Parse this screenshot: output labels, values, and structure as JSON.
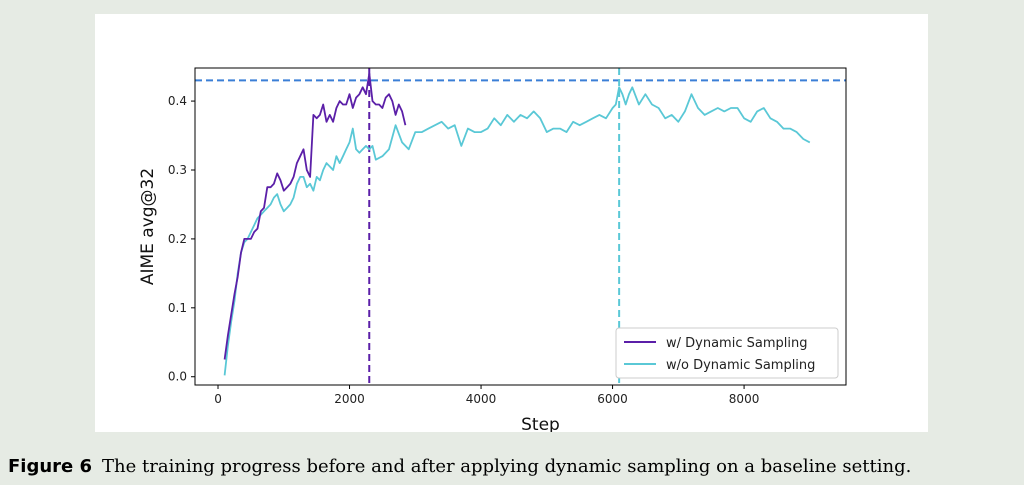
{
  "caption": {
    "label": "Figure 6",
    "text": "The training progress before and after applying dynamic sampling on a baseline setting."
  },
  "chart_data": {
    "type": "line",
    "title": "",
    "xlabel": "Step",
    "ylabel": "AIME avg@32",
    "xlim": [
      -350,
      9550
    ],
    "ylim": [
      -0.012,
      0.448
    ],
    "xticks": [
      0,
      2000,
      4000,
      6000,
      8000
    ],
    "xtick_labels": [
      "0",
      "2000",
      "4000",
      "6000",
      "8000"
    ],
    "yticks": [
      0.0,
      0.1,
      0.2,
      0.3,
      0.4
    ],
    "ytick_labels": [
      "0.0",
      "0.1",
      "0.2",
      "0.3",
      "0.4"
    ],
    "legend_position": "lower-right",
    "reference_lines": [
      {
        "orientation": "horizontal",
        "value": 0.43,
        "color": "#3b7fd6",
        "style": "dashed"
      },
      {
        "orientation": "vertical",
        "value": 2300,
        "color": "#5b1fa8",
        "style": "dashed"
      },
      {
        "orientation": "vertical",
        "value": 6100,
        "color": "#5ac8d6",
        "style": "dashed"
      }
    ],
    "series": [
      {
        "name": "w/ Dynamic Sampling",
        "color": "#5b1fa8",
        "x": [
          100,
          150,
          200,
          250,
          300,
          350,
          400,
          450,
          500,
          550,
          600,
          650,
          700,
          750,
          800,
          850,
          900,
          950,
          1000,
          1050,
          1100,
          1150,
          1200,
          1250,
          1300,
          1350,
          1400,
          1450,
          1500,
          1550,
          1600,
          1650,
          1700,
          1750,
          1800,
          1850,
          1900,
          1950,
          2000,
          2050,
          2100,
          2150,
          2200,
          2250,
          2300,
          2350,
          2400,
          2450,
          2500,
          2550,
          2600,
          2650,
          2700,
          2750,
          2800,
          2850
        ],
        "y": [
          0.025,
          0.06,
          0.09,
          0.12,
          0.145,
          0.18,
          0.2,
          0.2,
          0.2,
          0.21,
          0.215,
          0.24,
          0.245,
          0.275,
          0.275,
          0.28,
          0.295,
          0.285,
          0.27,
          0.275,
          0.28,
          0.29,
          0.31,
          0.32,
          0.33,
          0.3,
          0.29,
          0.38,
          0.375,
          0.38,
          0.395,
          0.37,
          0.38,
          0.37,
          0.39,
          0.4,
          0.395,
          0.395,
          0.41,
          0.39,
          0.405,
          0.41,
          0.42,
          0.41,
          0.44,
          0.4,
          0.395,
          0.395,
          0.39,
          0.405,
          0.41,
          0.4,
          0.38,
          0.395,
          0.385,
          0.365
        ]
      },
      {
        "name": "w/o Dynamic Sampling",
        "color": "#5ac8d6",
        "x": [
          100,
          150,
          200,
          250,
          300,
          350,
          400,
          450,
          500,
          550,
          600,
          650,
          700,
          750,
          800,
          850,
          900,
          950,
          1000,
          1050,
          1100,
          1150,
          1200,
          1250,
          1300,
          1350,
          1400,
          1450,
          1500,
          1550,
          1600,
          1650,
          1700,
          1750,
          1800,
          1850,
          1900,
          1950,
          2000,
          2050,
          2100,
          2150,
          2200,
          2250,
          2300,
          2350,
          2400,
          2500,
          2600,
          2700,
          2800,
          2900,
          3000,
          3100,
          3200,
          3300,
          3400,
          3500,
          3600,
          3700,
          3800,
          3900,
          4000,
          4100,
          4200,
          4300,
          4400,
          4500,
          4600,
          4700,
          4800,
          4900,
          5000,
          5100,
          5200,
          5300,
          5400,
          5500,
          5600,
          5700,
          5800,
          5900,
          6000,
          6050,
          6100,
          6150,
          6200,
          6250,
          6300,
          6400,
          6500,
          6600,
          6700,
          6800,
          6900,
          7000,
          7100,
          7200,
          7300,
          7400,
          7500,
          7600,
          7700,
          7800,
          7900,
          8000,
          8100,
          8200,
          8300,
          8400,
          8500,
          8600,
          8700,
          8800,
          8900,
          9000
        ],
        "y": [
          0.002,
          0.045,
          0.08,
          0.11,
          0.15,
          0.18,
          0.195,
          0.2,
          0.21,
          0.22,
          0.23,
          0.235,
          0.24,
          0.245,
          0.25,
          0.26,
          0.265,
          0.25,
          0.24,
          0.245,
          0.25,
          0.26,
          0.28,
          0.29,
          0.29,
          0.275,
          0.28,
          0.27,
          0.29,
          0.285,
          0.3,
          0.31,
          0.305,
          0.3,
          0.32,
          0.31,
          0.32,
          0.33,
          0.34,
          0.36,
          0.33,
          0.325,
          0.33,
          0.335,
          0.33,
          0.335,
          0.315,
          0.32,
          0.33,
          0.365,
          0.34,
          0.33,
          0.355,
          0.355,
          0.36,
          0.365,
          0.37,
          0.36,
          0.365,
          0.335,
          0.36,
          0.355,
          0.355,
          0.36,
          0.375,
          0.365,
          0.38,
          0.37,
          0.38,
          0.375,
          0.385,
          0.375,
          0.355,
          0.36,
          0.36,
          0.355,
          0.37,
          0.365,
          0.37,
          0.375,
          0.38,
          0.375,
          0.39,
          0.395,
          0.42,
          0.41,
          0.395,
          0.41,
          0.42,
          0.395,
          0.41,
          0.395,
          0.39,
          0.375,
          0.38,
          0.37,
          0.385,
          0.41,
          0.39,
          0.38,
          0.385,
          0.39,
          0.385,
          0.39,
          0.39,
          0.375,
          0.37,
          0.385,
          0.39,
          0.375,
          0.37,
          0.36,
          0.36,
          0.355,
          0.345,
          0.34
        ]
      }
    ]
  }
}
